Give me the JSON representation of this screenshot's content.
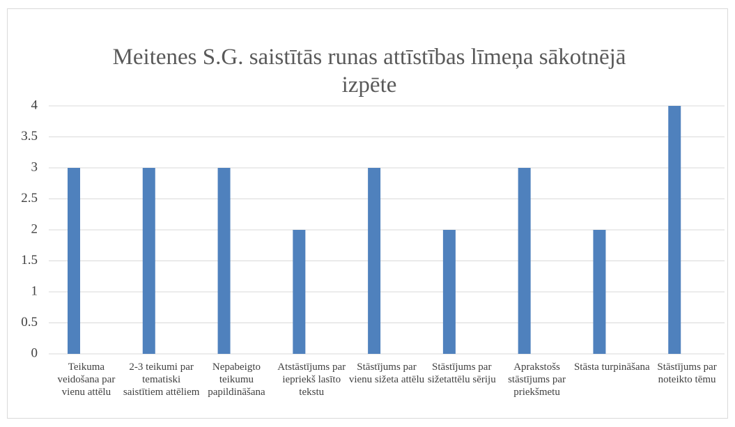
{
  "chart_data": {
    "type": "bar",
    "title": "Meitenes S.G. saistītās runas attīstības līmeņa sākotnējā izpēte",
    "categories": [
      "Teikuma veidošana par vienu attēlu",
      "2-3 teikumi par tematiski saistītiem attēliem",
      "Nepabeigto teikumu papildināšana",
      "Atstāstījums par iepriekš lasīto tekstu",
      "Stāstījums par vienu sižeta attēlu",
      "Stāstījums par sižetattēlu sēriju",
      "Aprakstošs stāstījums par priekšmetu",
      "Stāsta turpināšana",
      "Stāstījums par noteikto tēmu"
    ],
    "values": [
      3,
      3,
      3,
      2,
      3,
      2,
      3,
      2,
      4
    ],
    "color": "#4f81bd",
    "ylim": [
      0,
      4
    ],
    "yticks": [
      0,
      0.5,
      1,
      1.5,
      2,
      2.5,
      3,
      3.5,
      4
    ],
    "grid": true
  }
}
